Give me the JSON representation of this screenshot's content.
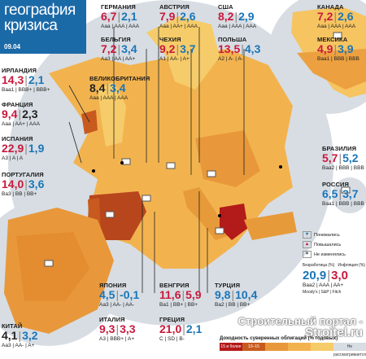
{
  "header": {
    "title_line1": "география",
    "title_line2": "кризиса",
    "date": "09.04"
  },
  "countries": {
    "germany": {
      "name": "ГЕРМАНИЯ",
      "v1": "6,7",
      "v2": "2,1",
      "rating": "Aaa | AAA | AAA"
    },
    "austria": {
      "name": "АВСТРИЯ",
      "v1": "7,9",
      "v2": "2,6",
      "rating": "Aaa | AA+ | AAA"
    },
    "usa": {
      "name": "США",
      "v1": "8,2",
      "v2": "2,9",
      "rating": "Aaa | AAA | AAA"
    },
    "canada": {
      "name": "КАНАДА",
      "v1": "7,2",
      "v2": "2,6",
      "rating": "Aaa | AAA | AAA"
    },
    "belgium": {
      "name": "БЕЛЬГИЯ",
      "v1": "7,2",
      "v2": "3,4",
      "rating": "Aa3 | AA | AA+"
    },
    "czech": {
      "name": "ЧЕХИЯ",
      "v1": "9,2",
      "v2": "3,7",
      "rating": "A1 | AA- | A+"
    },
    "poland": {
      "name": "ПОЛЬША",
      "v1": "13,5",
      "v2": "4,3",
      "rating": "A2 | A- | A-"
    },
    "mexico": {
      "name": "МЕКСИКА",
      "v1": "4,9",
      "v2": "3,9",
      "rating": "Baa1 | BBB | BBB"
    },
    "ireland": {
      "name": "ИРЛАНДИЯ",
      "v1": "14,3",
      "v2": "2,1",
      "rating": "Baa1 | BBB+ | BBB+"
    },
    "uk": {
      "name": "ВЕЛИКОБРИТАНИЯ",
      "v1": "8,4",
      "v2": "3,4",
      "rating": "Aaa | AAA | AAA"
    },
    "france": {
      "name": "ФРАНЦИЯ",
      "v1": "9,4",
      "v2": "2,3",
      "rating": "Aaa | AA+ | AAA"
    },
    "spain": {
      "name": "ИСПАНИЯ",
      "v1": "22,9",
      "v2": "1,9",
      "rating": "A3 | A | A"
    },
    "portugal": {
      "name": "ПОРТУГАЛИЯ",
      "v1": "14,0",
      "v2": "3,6",
      "rating": "Ba3 | BB | BB+"
    },
    "brazil": {
      "name": "БРАЗИЛИЯ",
      "v1": "5,7",
      "v2": "5,2",
      "rating": "Baa2 | BBB | BBB"
    },
    "russia": {
      "name": "РОССИЯ",
      "v1": "6,5",
      "v2": "3,7",
      "rating": "Baa1 | BBB | BBB"
    },
    "japan": {
      "name": "ЯПОНИЯ",
      "v1": "4,5",
      "v2": "-0,1",
      "rating": "Aa3 | AA- | AA-"
    },
    "hungary": {
      "name": "ВЕНГРИЯ",
      "v1": "11,6",
      "v2": "5,9",
      "rating": "Ba1 | BB+ | BB+"
    },
    "turkey": {
      "name": "ТУРЦИЯ",
      "v1": "9,8",
      "v2": "10,4",
      "rating": "Ba2 | BB | BB+"
    },
    "italy": {
      "name": "ИТАЛИЯ",
      "v1": "9,3",
      "v2": "3,3",
      "rating": "A3 | BBB+ | A+"
    },
    "greece": {
      "name": "ГРЕЦИЯ",
      "v1": "21,0",
      "v2": "2,1",
      "rating": "C | SD | B-"
    },
    "china": {
      "name": "КИТАЙ",
      "v1": "4,1",
      "v2": "3,2",
      "rating": "Aa3 | AA- | A+"
    },
    "sample": {
      "v1": "20,9",
      "v2": "3,0",
      "rating": "Baa2 | AAA | AA+"
    }
  },
  "legend": {
    "down": "Понижались",
    "up": "Повышались",
    "nochange": "Не изменялись",
    "unemp": "Безработица",
    "infl": "Инфляция",
    "pct": "(%)",
    "agencies": "Moody's | S&P | Fitch",
    "scale_title": "Доходность суверенных облигаций (% годовых)",
    "scale_labels": [
      "15 и более",
      "10–15",
      "",
      "",
      "",
      "Не рассматривается"
    ]
  },
  "watermark": {
    "line1": "Строительный портал -",
    "line2": "Stroitel.ru"
  },
  "colors": {
    "title_bg": "#1b6aa8",
    "red": "#c8193c",
    "blue": "#1b75b8"
  }
}
